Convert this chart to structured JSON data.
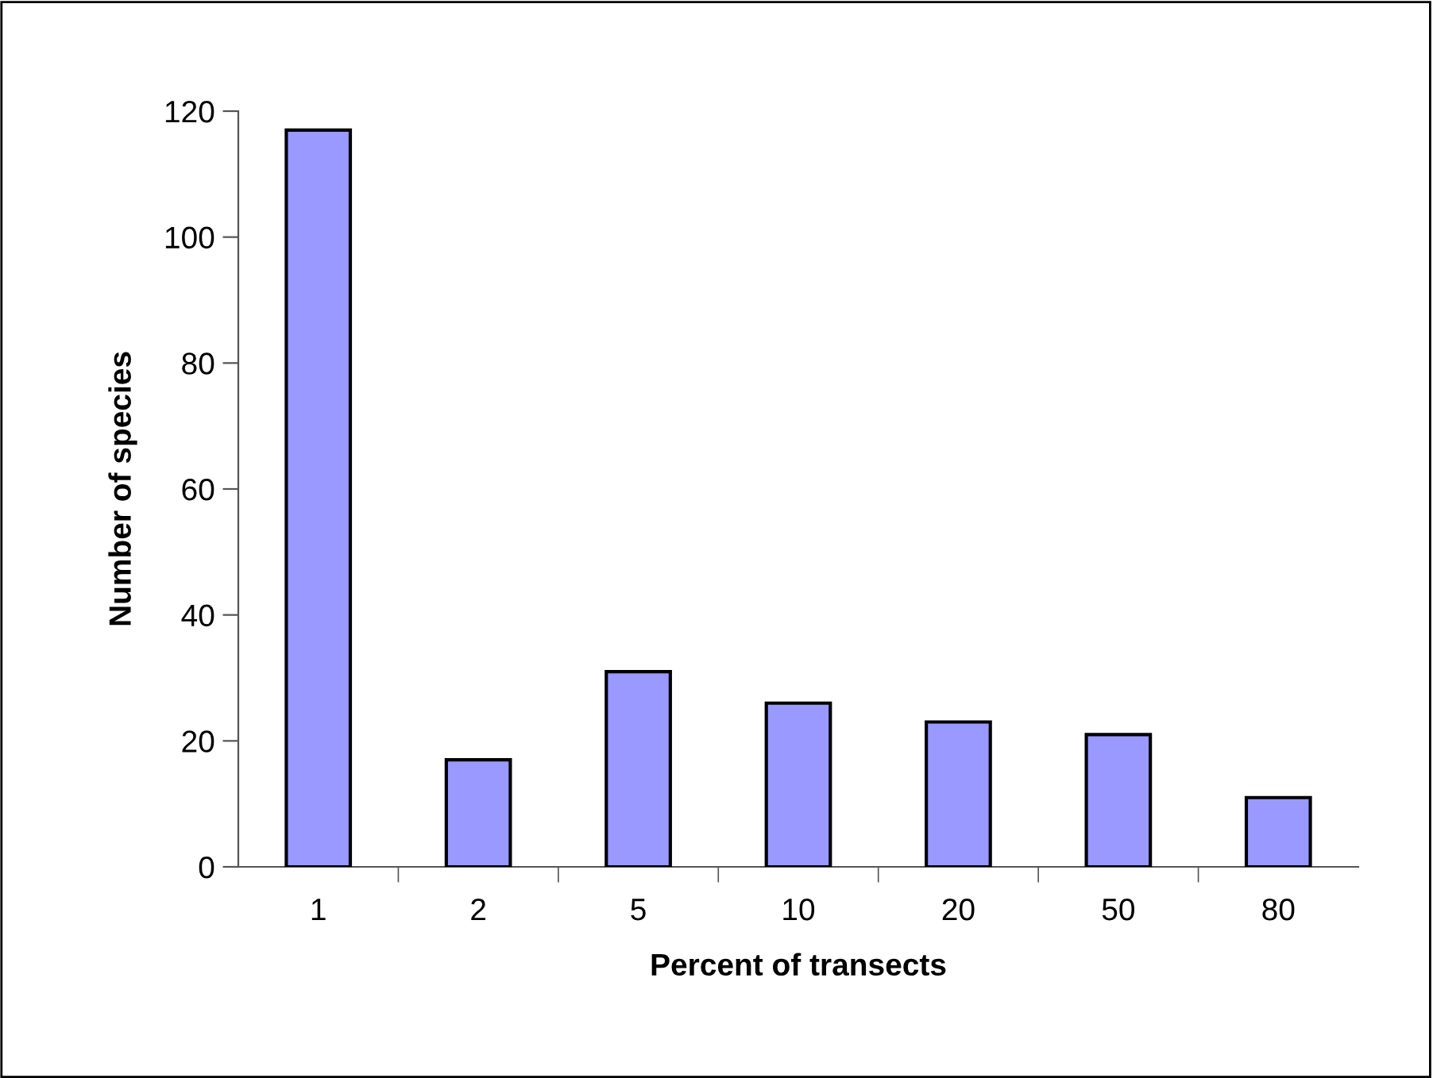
{
  "chart_data": {
    "type": "bar",
    "xlabel": "Percent of transects",
    "ylabel": "Number of species",
    "categories": [
      "1",
      "2",
      "5",
      "10",
      "20",
      "50",
      "80"
    ],
    "values": [
      117,
      17,
      31,
      26,
      23,
      21,
      11
    ],
    "color": "#9999ff",
    "ylim": [
      0,
      120
    ],
    "yticks": [
      0,
      20,
      40,
      60,
      80,
      100,
      120
    ],
    "grid": false,
    "legend": false
  }
}
